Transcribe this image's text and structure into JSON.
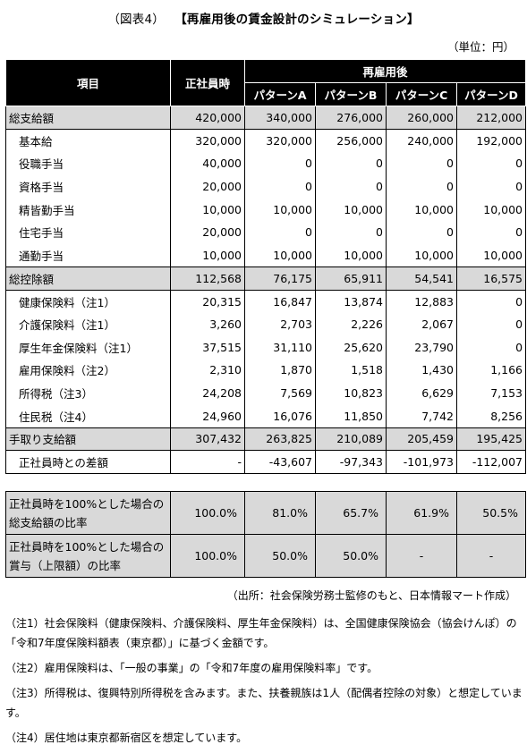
{
  "title": {
    "fig": "（図表4）",
    "main": "【再雇用後の賃金設計のシミュレーション】"
  },
  "unit": "（単位：円）",
  "header": {
    "item": "項目",
    "regular": "正社員時",
    "rehire": "再雇用後",
    "patterns": [
      "パターンA",
      "パターンB",
      "パターンC",
      "パターンD"
    ]
  },
  "rows": [
    {
      "kind": "cat",
      "label": "総支給額",
      "values": [
        "420,000",
        "340,000",
        "276,000",
        "260,000",
        "212,000"
      ]
    },
    {
      "kind": "sub",
      "label": "基本給",
      "values": [
        "320,000",
        "320,000",
        "256,000",
        "240,000",
        "192,000"
      ]
    },
    {
      "kind": "sub",
      "label": "役職手当",
      "values": [
        "40,000",
        "0",
        "0",
        "0",
        "0"
      ]
    },
    {
      "kind": "sub",
      "label": "資格手当",
      "values": [
        "20,000",
        "0",
        "0",
        "0",
        "0"
      ]
    },
    {
      "kind": "sub",
      "label": "精皆勤手当",
      "values": [
        "10,000",
        "10,000",
        "10,000",
        "10,000",
        "10,000"
      ]
    },
    {
      "kind": "sub",
      "label": "住宅手当",
      "values": [
        "20,000",
        "0",
        "0",
        "0",
        "0"
      ]
    },
    {
      "kind": "sub",
      "label": "通勤手当",
      "values": [
        "10,000",
        "10,000",
        "10,000",
        "10,000",
        "10,000"
      ]
    },
    {
      "kind": "cat",
      "label": "総控除額",
      "values": [
        "112,568",
        "76,175",
        "65,911",
        "54,541",
        "16,575"
      ]
    },
    {
      "kind": "sub",
      "label": "健康保険料（注1）",
      "values": [
        "20,315",
        "16,847",
        "13,874",
        "12,883",
        "0"
      ]
    },
    {
      "kind": "sub",
      "label": "介護保険料（注1）",
      "values": [
        "3,260",
        "2,703",
        "2,226",
        "2,067",
        "0"
      ]
    },
    {
      "kind": "sub",
      "label": "厚生年金保険料（注1）",
      "values": [
        "37,515",
        "31,110",
        "25,620",
        "23,790",
        "0"
      ]
    },
    {
      "kind": "sub",
      "label": "雇用保険料（注2）",
      "values": [
        "2,310",
        "1,870",
        "1,518",
        "1,430",
        "1,166"
      ]
    },
    {
      "kind": "sub",
      "label": "所得税（注3）",
      "values": [
        "24,208",
        "7,569",
        "10,823",
        "6,629",
        "7,153"
      ]
    },
    {
      "kind": "sub",
      "label": "住民税（注4）",
      "values": [
        "24,960",
        "16,076",
        "11,850",
        "7,742",
        "8,256"
      ]
    },
    {
      "kind": "cat",
      "label": "手取り支給額",
      "values": [
        "307,432",
        "263,825",
        "210,089",
        "205,459",
        "195,425"
      ]
    },
    {
      "kind": "sub",
      "label": "正社員時との差額",
      "values": [
        "-",
        "-43,607",
        "-97,343",
        "-101,973",
        "-112,007"
      ]
    }
  ],
  "ratios": [
    {
      "label1": "正社員時を100%とした場合の",
      "label2": "総支給額の比率",
      "values": [
        "100.0%",
        "81.0%",
        "65.7%",
        "61.9%",
        "50.5%"
      ]
    },
    {
      "label1": "正社員時を100%とした場合の",
      "label2": "賞与（上限額）の比率",
      "values": [
        "100.0%",
        "50.0%",
        "50.0%",
        "-",
        "-"
      ]
    }
  ],
  "source": "（出所：社会保険労務士監修のもと、日本情報マート作成）",
  "notes": [
    "（注1）社会保険料（健康保険料、介護保険料、厚生年金保険料）は、全国健康保険協会（協会けんぽ）の「令和7年度保険料額表（東京都）」に基づく金額です。",
    "（注2）雇用保険料は、「一般の事業」の「令和7年度の雇用保険料率」です。",
    "（注3）所得税は、復興特別所得税を含みます。また、扶養親族は1人（配偶者控除の対象）と想定しています。",
    "（注4）居住地は東京都新宿区を想定しています。"
  ]
}
